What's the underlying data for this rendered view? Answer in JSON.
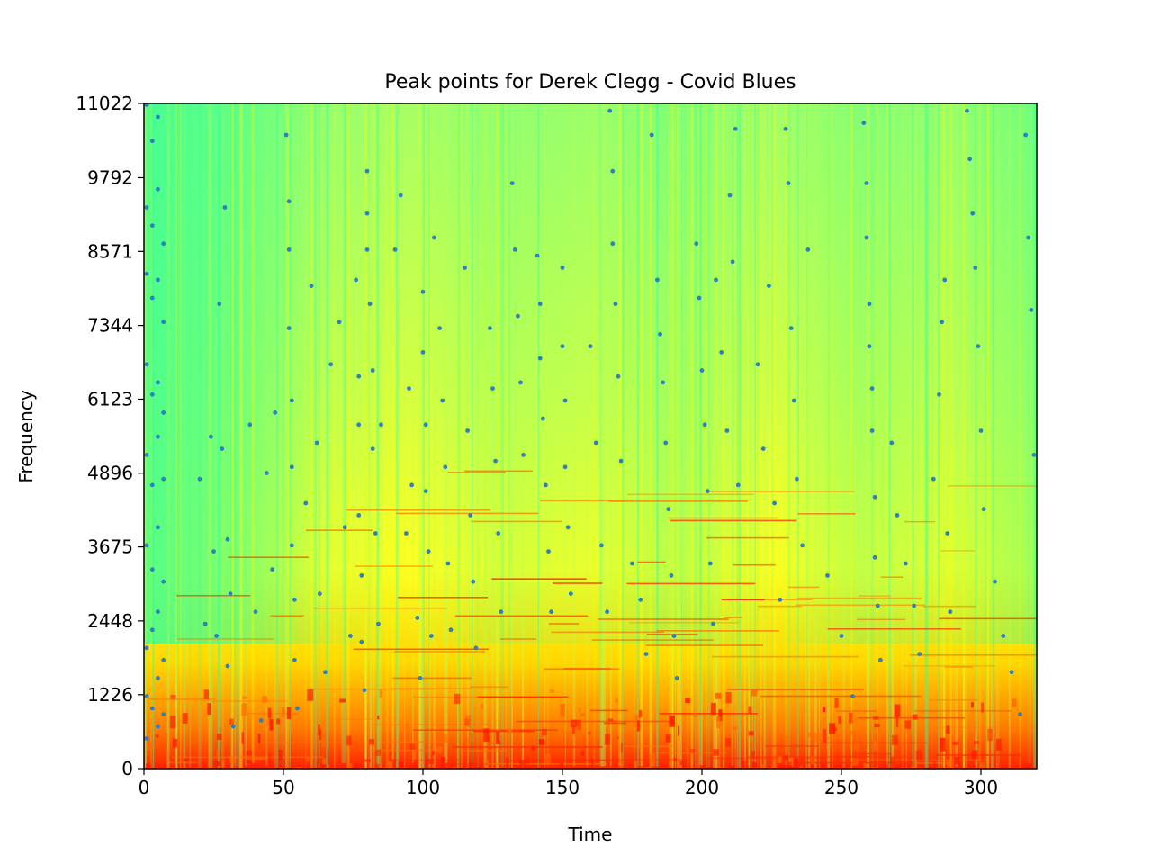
{
  "chart_data": {
    "type": "scatter",
    "title": "Peak points for Derek Clegg - Covid Blues",
    "xlabel": "Time",
    "ylabel": "Frequency",
    "xlim": [
      0,
      320
    ],
    "ylim": [
      0,
      11022
    ],
    "x_ticks": [
      0,
      50,
      100,
      150,
      200,
      250,
      300
    ],
    "y_ticks": [
      0,
      1226,
      2448,
      3675,
      4896,
      6123,
      7344,
      8571,
      9792,
      11022
    ],
    "grid": false,
    "legend": "none",
    "background": "spectrogram",
    "background_colors": {
      "low": "#33ff99",
      "mid": "#ffff00",
      "high": "#ff0000"
    },
    "point_color": "#2f7fc1",
    "series": [
      {
        "points": [
          [
            1,
            11000
          ],
          [
            1,
            9300
          ],
          [
            1,
            8200
          ],
          [
            1,
            6700
          ],
          [
            1,
            5200
          ],
          [
            1,
            3700
          ],
          [
            1,
            2000
          ],
          [
            1,
            1200
          ],
          [
            1,
            500
          ],
          [
            3,
            10400
          ],
          [
            3,
            9000
          ],
          [
            3,
            7800
          ],
          [
            3,
            6200
          ],
          [
            3,
            4700
          ],
          [
            3,
            3300
          ],
          [
            3,
            2300
          ],
          [
            3,
            1000
          ],
          [
            5,
            10800
          ],
          [
            5,
            9600
          ],
          [
            5,
            8100
          ],
          [
            5,
            6400
          ],
          [
            5,
            5500
          ],
          [
            5,
            4000
          ],
          [
            5,
            2600
          ],
          [
            5,
            1500
          ],
          [
            5,
            700
          ],
          [
            7,
            8700
          ],
          [
            7,
            7400
          ],
          [
            7,
            5900
          ],
          [
            7,
            4800
          ],
          [
            7,
            3100
          ],
          [
            7,
            1800
          ],
          [
            7,
            900
          ],
          [
            20,
            4800
          ],
          [
            22,
            2400
          ],
          [
            24,
            5500
          ],
          [
            25,
            3600
          ],
          [
            26,
            2200
          ],
          [
            27,
            7700
          ],
          [
            28,
            5300
          ],
          [
            29,
            9300
          ],
          [
            30,
            3800
          ],
          [
            30,
            1700
          ],
          [
            31,
            2900
          ],
          [
            32,
            700
          ],
          [
            38,
            5700
          ],
          [
            40,
            2600
          ],
          [
            42,
            800
          ],
          [
            44,
            4900
          ],
          [
            46,
            3300
          ],
          [
            47,
            5900
          ],
          [
            51,
            10500
          ],
          [
            52,
            9400
          ],
          [
            52,
            8600
          ],
          [
            52,
            7300
          ],
          [
            53,
            6100
          ],
          [
            53,
            5000
          ],
          [
            53,
            3700
          ],
          [
            54,
            2800
          ],
          [
            54,
            1800
          ],
          [
            55,
            1000
          ],
          [
            58,
            4400
          ],
          [
            60,
            8000
          ],
          [
            62,
            5400
          ],
          [
            63,
            2900
          ],
          [
            65,
            1600
          ],
          [
            67,
            6700
          ],
          [
            70,
            7400
          ],
          [
            72,
            4000
          ],
          [
            74,
            2200
          ],
          [
            76,
            8100
          ],
          [
            77,
            6500
          ],
          [
            77,
            5700
          ],
          [
            77,
            4200
          ],
          [
            78,
            3200
          ],
          [
            78,
            2100
          ],
          [
            79,
            1300
          ],
          [
            80,
            9900
          ],
          [
            80,
            9200
          ],
          [
            80,
            8600
          ],
          [
            81,
            7700
          ],
          [
            82,
            6600
          ],
          [
            82,
            5300
          ],
          [
            83,
            3900
          ],
          [
            84,
            2400
          ],
          [
            85,
            5700
          ],
          [
            90,
            8600
          ],
          [
            92,
            9500
          ],
          [
            94,
            3900
          ],
          [
            95,
            6300
          ],
          [
            96,
            4700
          ],
          [
            98,
            2500
          ],
          [
            99,
            1500
          ],
          [
            100,
            7900
          ],
          [
            100,
            6900
          ],
          [
            101,
            5700
          ],
          [
            101,
            4600
          ],
          [
            102,
            3600
          ],
          [
            103,
            2200
          ],
          [
            104,
            8800
          ],
          [
            106,
            7300
          ],
          [
            107,
            6100
          ],
          [
            108,
            5000
          ],
          [
            109,
            3400
          ],
          [
            110,
            2300
          ],
          [
            115,
            8300
          ],
          [
            116,
            5600
          ],
          [
            117,
            4200
          ],
          [
            118,
            3100
          ],
          [
            119,
            2000
          ],
          [
            124,
            7300
          ],
          [
            125,
            6300
          ],
          [
            126,
            5100
          ],
          [
            127,
            3900
          ],
          [
            128,
            2600
          ],
          [
            132,
            9700
          ],
          [
            133,
            8600
          ],
          [
            134,
            7500
          ],
          [
            135,
            6400
          ],
          [
            136,
            5200
          ],
          [
            141,
            8500
          ],
          [
            142,
            7700
          ],
          [
            142,
            6800
          ],
          [
            143,
            5800
          ],
          [
            144,
            4700
          ],
          [
            145,
            3600
          ],
          [
            146,
            2600
          ],
          [
            150,
            8300
          ],
          [
            150,
            7000
          ],
          [
            151,
            6100
          ],
          [
            151,
            5000
          ],
          [
            152,
            4000
          ],
          [
            153,
            2900
          ],
          [
            160,
            7000
          ],
          [
            162,
            5400
          ],
          [
            164,
            3700
          ],
          [
            166,
            2600
          ],
          [
            167,
            10900
          ],
          [
            168,
            9900
          ],
          [
            168,
            8700
          ],
          [
            169,
            7700
          ],
          [
            170,
            6500
          ],
          [
            171,
            5100
          ],
          [
            175,
            3400
          ],
          [
            178,
            2800
          ],
          [
            180,
            1900
          ],
          [
            182,
            10500
          ],
          [
            184,
            8100
          ],
          [
            185,
            7200
          ],
          [
            186,
            6400
          ],
          [
            187,
            5400
          ],
          [
            188,
            4300
          ],
          [
            189,
            3200
          ],
          [
            190,
            2200
          ],
          [
            191,
            1500
          ],
          [
            198,
            8700
          ],
          [
            199,
            7800
          ],
          [
            200,
            6600
          ],
          [
            201,
            5700
          ],
          [
            202,
            4600
          ],
          [
            203,
            3400
          ],
          [
            204,
            2400
          ],
          [
            205,
            8100
          ],
          [
            207,
            6900
          ],
          [
            209,
            5600
          ],
          [
            210,
            9500
          ],
          [
            211,
            8400
          ],
          [
            212,
            10600
          ],
          [
            213,
            4700
          ],
          [
            220,
            6700
          ],
          [
            222,
            5300
          ],
          [
            224,
            8000
          ],
          [
            226,
            4400
          ],
          [
            228,
            2800
          ],
          [
            230,
            10600
          ],
          [
            231,
            9700
          ],
          [
            232,
            7300
          ],
          [
            233,
            6100
          ],
          [
            234,
            4800
          ],
          [
            236,
            3700
          ],
          [
            238,
            8600
          ],
          [
            245,
            3200
          ],
          [
            250,
            2200
          ],
          [
            254,
            1200
          ],
          [
            258,
            10700
          ],
          [
            259,
            9700
          ],
          [
            259,
            8800
          ],
          [
            260,
            7700
          ],
          [
            260,
            7000
          ],
          [
            261,
            6300
          ],
          [
            261,
            5600
          ],
          [
            262,
            4500
          ],
          [
            262,
            3500
          ],
          [
            263,
            2700
          ],
          [
            264,
            1800
          ],
          [
            268,
            5400
          ],
          [
            270,
            4200
          ],
          [
            273,
            3400
          ],
          [
            276,
            2700
          ],
          [
            278,
            1900
          ],
          [
            283,
            4800
          ],
          [
            285,
            6200
          ],
          [
            286,
            7400
          ],
          [
            287,
            8100
          ],
          [
            288,
            3900
          ],
          [
            289,
            2600
          ],
          [
            295,
            10900
          ],
          [
            296,
            10100
          ],
          [
            297,
            9200
          ],
          [
            298,
            8300
          ],
          [
            299,
            7000
          ],
          [
            300,
            5600
          ],
          [
            301,
            4300
          ],
          [
            305,
            3100
          ],
          [
            308,
            2200
          ],
          [
            311,
            1600
          ],
          [
            314,
            900
          ],
          [
            316,
            10500
          ],
          [
            317,
            8800
          ],
          [
            318,
            7600
          ],
          [
            319,
            5200
          ]
        ]
      }
    ]
  }
}
